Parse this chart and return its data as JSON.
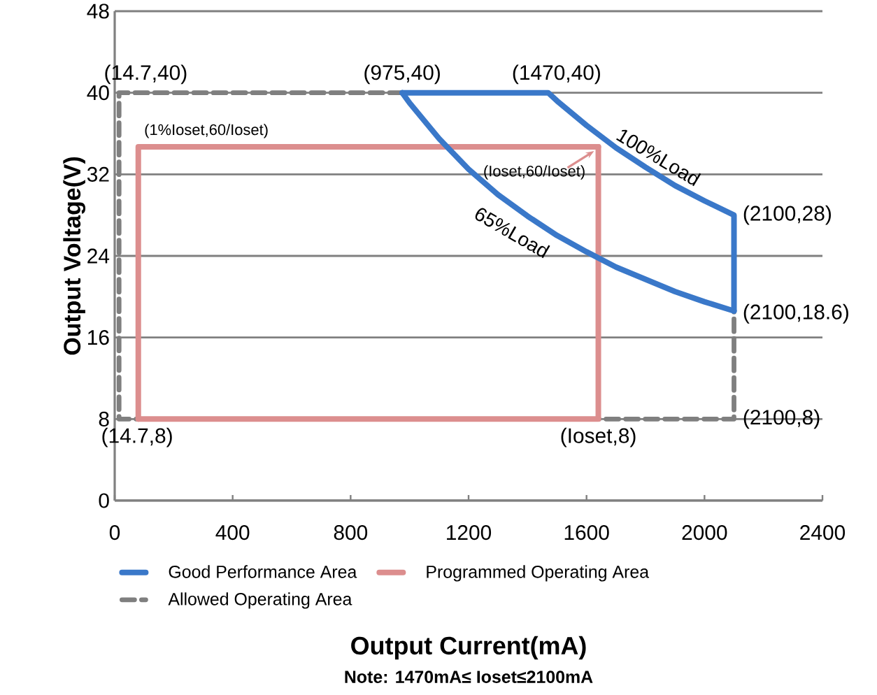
{
  "chart_data": {
    "type": "line",
    "xlabel": "Output Current(mA)",
    "ylabel": "Output Voltage(V)",
    "xlim": [
      0,
      2400
    ],
    "ylim": [
      0,
      48
    ],
    "xticks": [
      0,
      400,
      800,
      1200,
      1600,
      2000,
      2400
    ],
    "yticks": [
      0,
      8,
      16,
      24,
      32,
      40,
      48
    ],
    "grid": "y",
    "legend": "bottom",
    "marker": "none",
    "line_style": "solid",
    "series": [
      {
        "name": "Good Performance Area",
        "color": "#3a78c9",
        "x": [
          975,
          1470,
          1500,
          1600,
          1700,
          1800,
          1900,
          2000,
          2100,
          2100
        ],
        "values": [
          40,
          40,
          39.2,
          36.8,
          34.6,
          32.7,
          30.9,
          29.4,
          28,
          18.6
        ]
      },
      {
        "color": "#3a78c9",
        "x": [
          975,
          1000,
          1100,
          1200,
          1300,
          1400,
          1500,
          1600,
          1700,
          1800,
          1900,
          2000,
          2100
        ],
        "values": [
          40,
          39,
          35.5,
          32.5,
          30,
          27.9,
          26,
          24.4,
          22.9,
          21.7,
          20.5,
          19.5,
          18.6
        ]
      },
      {
        "name": "Programmed Operating Area",
        "color": "#dc8e8e",
        "x": [
          80,
          1640,
          1640
        ],
        "values": [
          8,
          8,
          34.7
        ]
      },
      {
        "color": "#dc8e8e",
        "x": [
          80,
          80,
          1640
        ],
        "values": [
          8,
          34.7,
          34.7
        ]
      },
      {
        "name": "Allowed Operating Area",
        "color": "#7f7f7f",
        "line_style": "dashed",
        "x": [
          975,
          14.7,
          14.7,
          2100,
          2100
        ],
        "values": [
          40,
          40,
          8,
          8,
          18.6
        ]
      }
    ],
    "annotations": [
      {
        "text": "(14.7,40)",
        "x": 14.7,
        "y": 40
      },
      {
        "text": "(975,40)",
        "x": 975,
        "y": 40
      },
      {
        "text": "(1470,40)",
        "x": 1470,
        "y": 40
      },
      {
        "text": "(1%Ioset,60/Ioset)",
        "x": 80,
        "y": 34.7
      },
      {
        "text": "(Ioset,60/Ioset)",
        "x": 1640,
        "y": 34.7
      },
      {
        "text": "100%Load",
        "x": 1800,
        "y": 32.7
      },
      {
        "text": "65%Load",
        "x": 1400,
        "y": 27.9
      },
      {
        "text": "(2100,28)",
        "x": 2100,
        "y": 28
      },
      {
        "text": "(2100,18.6)",
        "x": 2100,
        "y": 18.6
      },
      {
        "text": "(2100,8)",
        "x": 2100,
        "y": 8
      },
      {
        "text": "(14.7,8)",
        "x": 14.7,
        "y": 8
      },
      {
        "text": "(Ioset,8)",
        "x": 1640,
        "y": 8
      },
      "Note: 1470mA≤ Ioset≤2100mA"
    ]
  }
}
